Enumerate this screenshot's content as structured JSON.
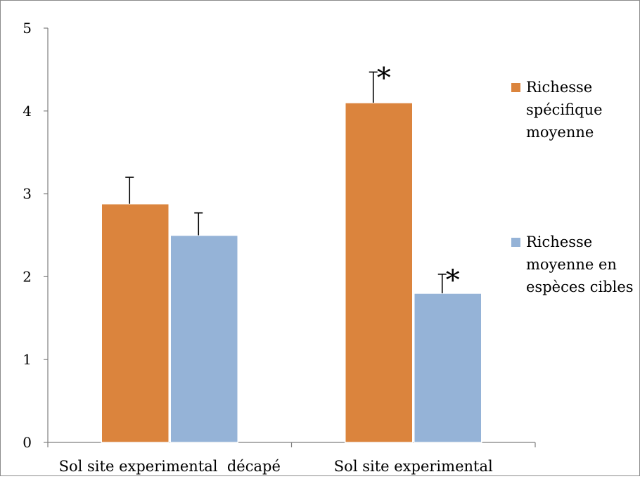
{
  "chart_data": {
    "type": "bar",
    "categories": [
      "Sol site experimental  décapé",
      "Sol site experimental"
    ],
    "series": [
      {
        "name": "Richesse spécifique moyenne",
        "legend_lines": [
          "Richesse",
          "spécifique",
          "moyenne"
        ],
        "color": "#DB843D",
        "values": [
          2.88,
          4.1
        ],
        "error_top": [
          3.2,
          4.47
        ],
        "significance": [
          "",
          "*"
        ]
      },
      {
        "name": "Richesse moyenne en espèces cibles",
        "legend_lines": [
          "Richesse",
          "moyenne en",
          "espèces cibles"
        ],
        "color": "#95B3D7",
        "values": [
          2.5,
          1.8
        ],
        "error_top": [
          2.77,
          2.03
        ],
        "significance": [
          "",
          "*"
        ]
      }
    ],
    "ylim": [
      0,
      5
    ],
    "yticks": [
      "0",
      "1",
      "2",
      "3",
      "4",
      "5"
    ],
    "title": "",
    "xlabel": "",
    "ylabel": "",
    "grid": false,
    "legend_position": "right"
  }
}
